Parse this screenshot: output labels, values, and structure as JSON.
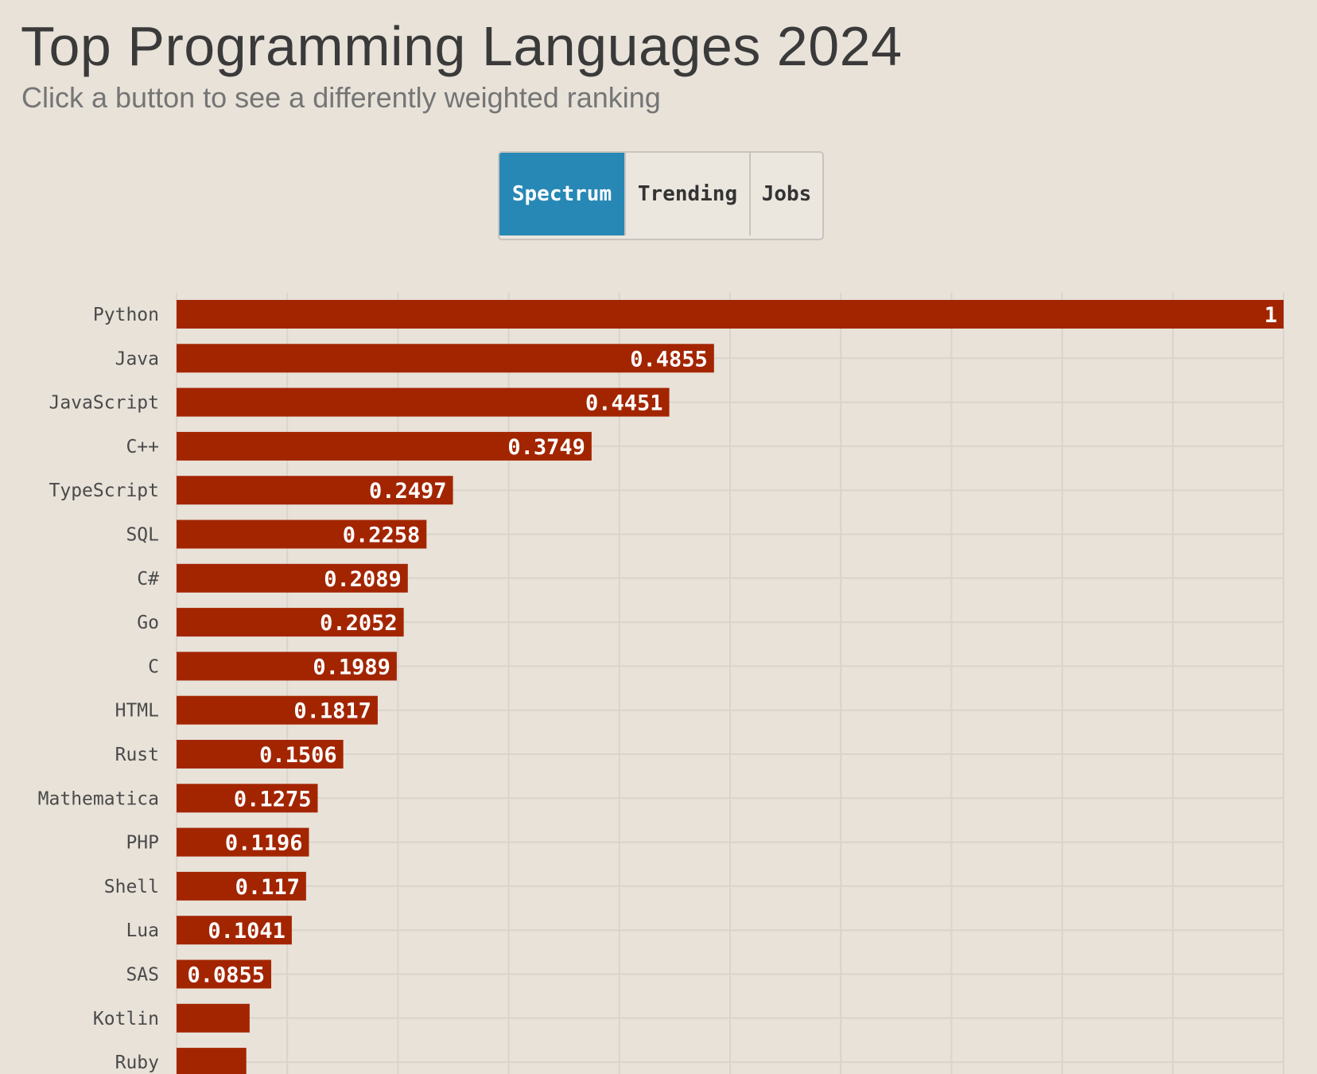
{
  "header": {
    "title": "Top Programming Languages 2024",
    "subtitle": "Click a button to see a differently weighted ranking"
  },
  "buttons": [
    {
      "label": "Spectrum",
      "active": true
    },
    {
      "label": "Trending",
      "active": false
    },
    {
      "label": "Jobs",
      "active": false
    }
  ],
  "colors": {
    "bar": "#a32500",
    "active_button": "#2888b5",
    "background": "#e8e2d9"
  },
  "chart_data": {
    "type": "bar",
    "orientation": "horizontal",
    "title": "Top Programming Languages 2024",
    "xlim": [
      0,
      1
    ],
    "grid": true,
    "categories": [
      "Python",
      "Java",
      "JavaScript",
      "C++",
      "TypeScript",
      "SQL",
      "C#",
      "Go",
      "C",
      "HTML",
      "Rust",
      "Mathematica",
      "PHP",
      "Shell",
      "Lua",
      "SAS",
      "Kotlin",
      "Ruby"
    ],
    "values": [
      1,
      0.4855,
      0.4451,
      0.3749,
      0.2497,
      0.2258,
      0.2089,
      0.2052,
      0.1989,
      0.1817,
      0.1506,
      0.1275,
      0.1196,
      0.117,
      0.1041,
      0.0855,
      0.066,
      0.063
    ],
    "labels": [
      "1",
      "0.4855",
      "0.4451",
      "0.3749",
      "0.2497",
      "0.2258",
      "0.2089",
      "0.2052",
      "0.1989",
      "0.1817",
      "0.1506",
      "0.1275",
      "0.1196",
      "0.117",
      "0.1041",
      "0.0855",
      "",
      ""
    ]
  }
}
